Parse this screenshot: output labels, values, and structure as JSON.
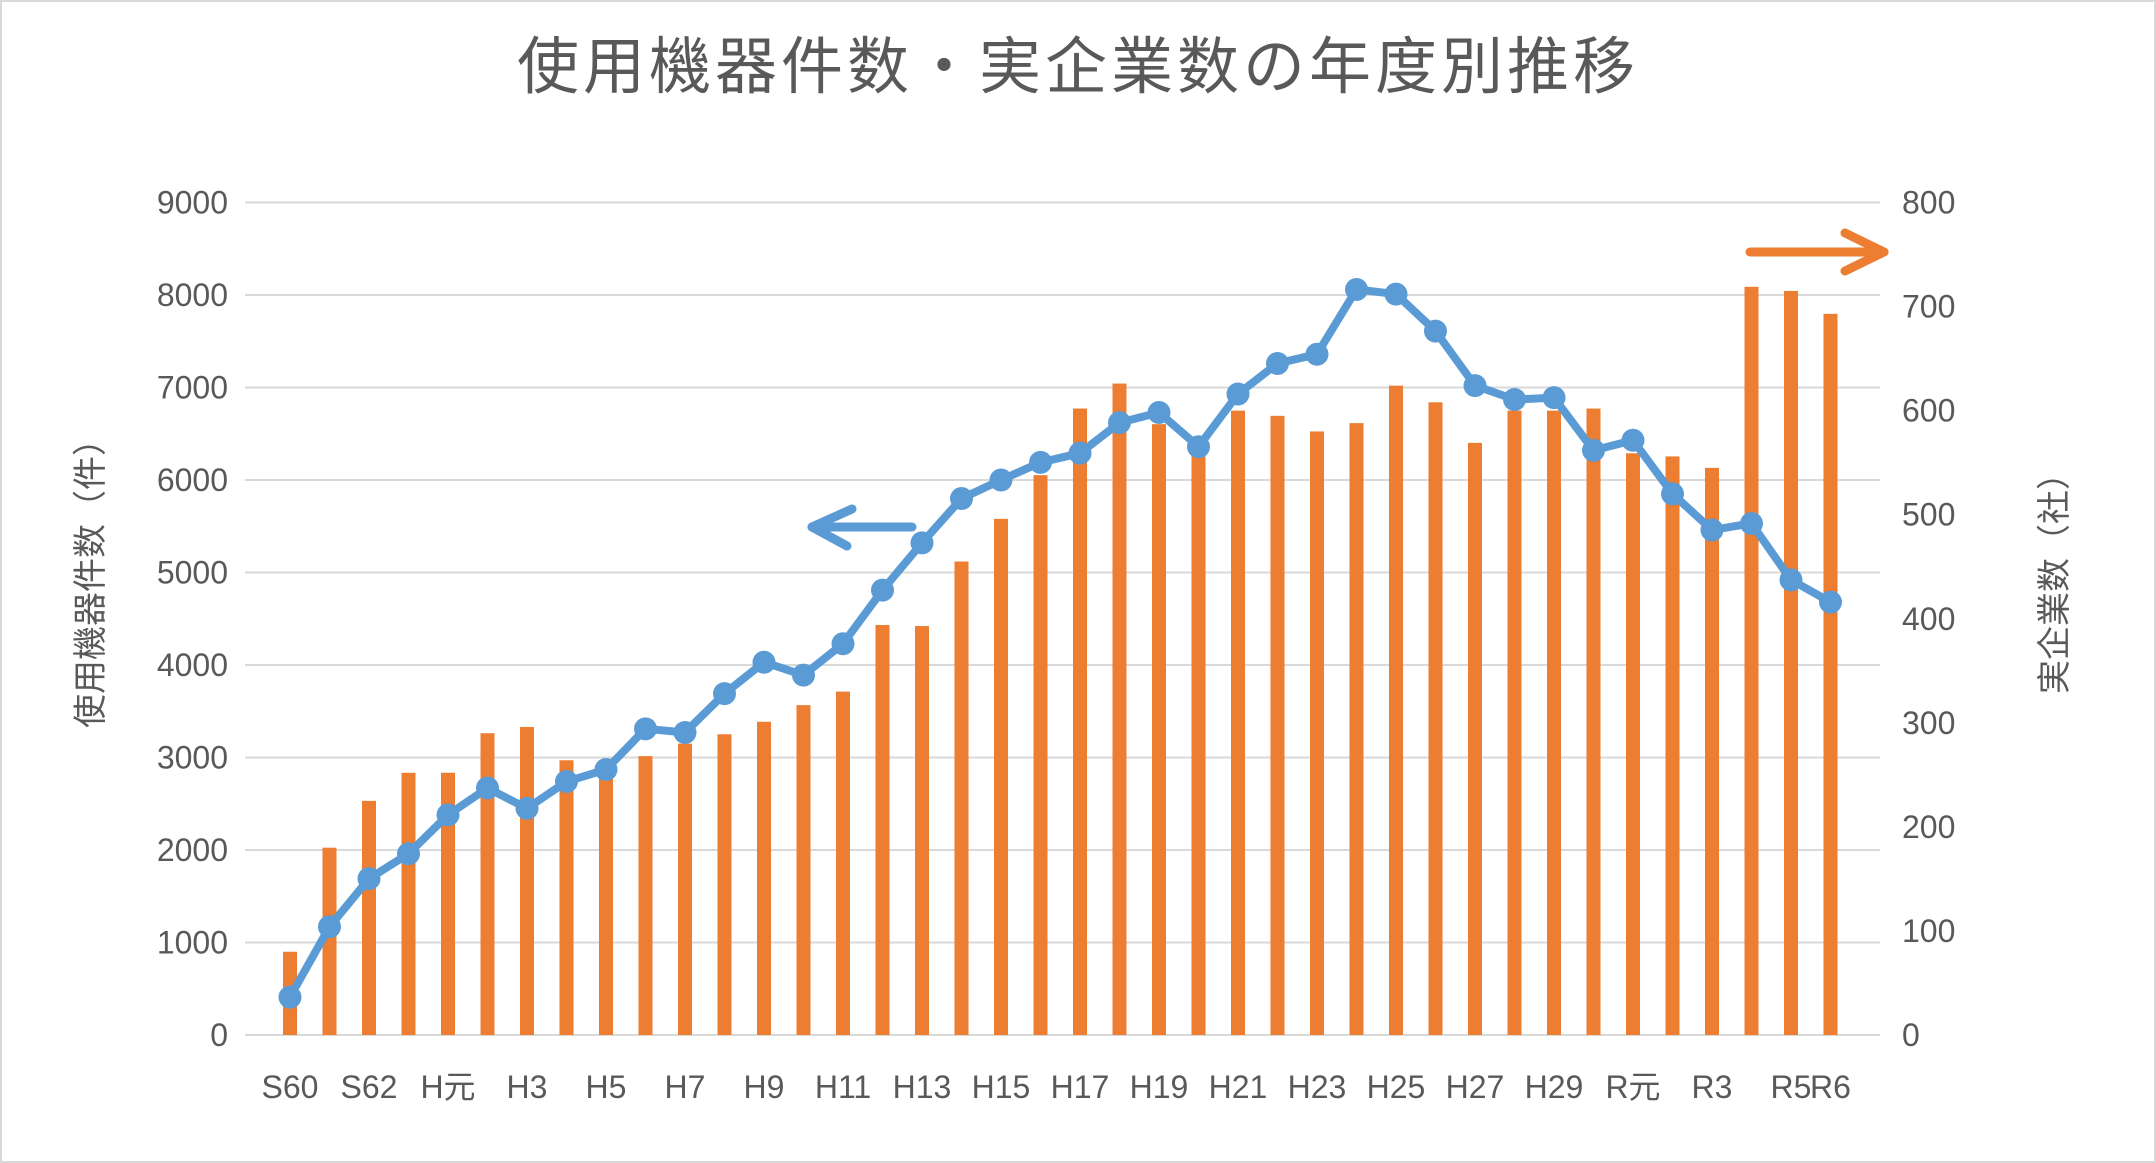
{
  "title": "使用機器件数・実企業数の年度別推移",
  "colors": {
    "line": "#5B9BD5",
    "bar": "#ED7D31",
    "grid": "#D9D9D9",
    "text": "#595959",
    "border": "#D9D9D9"
  },
  "chart_data": {
    "type": "combo-bar-line",
    "title": "使用機器件数・実企業数の年度別推移",
    "grid": true,
    "legend": "none",
    "categories": [
      "S60",
      "S61",
      "S62",
      "S63",
      "H元",
      "H2",
      "H3",
      "H4",
      "H5",
      "H6",
      "H7",
      "H8",
      "H9",
      "H10",
      "H11",
      "H12",
      "H13",
      "H14",
      "H15",
      "H16",
      "H17",
      "H18",
      "H19",
      "H20",
      "H21",
      "H22",
      "H23",
      "H24",
      "H25",
      "H26",
      "H27",
      "H28",
      "H29",
      "H30",
      "R元",
      "R2",
      "R3",
      "R4",
      "R5",
      "R6"
    ],
    "x_tick_labels": [
      "S60",
      "S62",
      "H元",
      "H3",
      "H5",
      "H7",
      "H9",
      "H11",
      "H13",
      "H15",
      "H17",
      "H19",
      "H21",
      "H23",
      "H25",
      "H27",
      "H29",
      "R元",
      "R3",
      "R5",
      "R6"
    ],
    "left_axis": {
      "title": "使用機器件数（件）",
      "min": 0,
      "max": 9000,
      "step": 1000,
      "ticks": [
        0,
        1000,
        2000,
        3000,
        4000,
        5000,
        6000,
        7000,
        8000,
        9000
      ]
    },
    "right_axis": {
      "title": "実企業数（社）",
      "min": 0,
      "max": 800,
      "step": 100,
      "ticks": [
        0,
        100,
        200,
        300,
        400,
        500,
        600,
        700,
        800
      ]
    },
    "series": [
      {
        "name": "使用機器件数",
        "type": "line",
        "axis": "left",
        "color": "#5B9BD5",
        "values": [
          410,
          1170,
          1690,
          1960,
          2380,
          2670,
          2450,
          2740,
          2870,
          3310,
          3270,
          3690,
          4030,
          3890,
          4230,
          4810,
          5320,
          5800,
          6000,
          6190,
          6290,
          6620,
          6730,
          6360,
          6930,
          7260,
          7360,
          8060,
          8010,
          7610,
          7020,
          6870,
          6890,
          6320,
          6430,
          5850,
          5460,
          5530,
          4920,
          4680
        ]
      },
      {
        "name": "実企業数",
        "type": "bar",
        "axis": "right",
        "color": "#ED7D31",
        "values": [
          80,
          180,
          225,
          252,
          252,
          290,
          296,
          264,
          262,
          268,
          280,
          289,
          301,
          317,
          330,
          394,
          393,
          455,
          496,
          538,
          602,
          626,
          587,
          556,
          600,
          595,
          580,
          588,
          624,
          608,
          569,
          600,
          600,
          602,
          559,
          556,
          545,
          719,
          715,
          693
        ]
      }
    ],
    "annotations": [
      {
        "name": "line-series-axis-arrow",
        "direction": "left",
        "color": "#5B9BD5"
      },
      {
        "name": "bar-series-axis-arrow",
        "direction": "right",
        "color": "#ED7D31"
      }
    ]
  }
}
